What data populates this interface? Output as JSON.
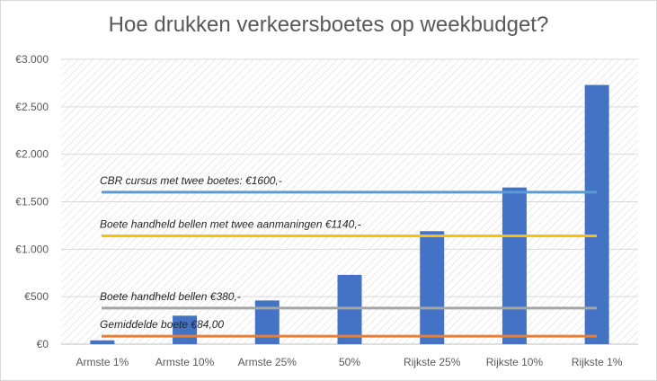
{
  "chart_data": {
    "type": "bar",
    "title": "Hoe drukken verkeersboetes op weekbudget?",
    "categories": [
      "Armste 1%",
      "Armste 10%",
      "Armste 25%",
      "50%",
      "Rijkste 25%",
      "Rijkste 10%",
      "Rijkste 1%"
    ],
    "values": [
      40,
      300,
      460,
      730,
      1190,
      1650,
      2730
    ],
    "ylim": [
      0,
      3000
    ],
    "yticks": [
      0,
      500,
      1000,
      1500,
      2000,
      2500,
      3000
    ],
    "ytick_labels": [
      "€0",
      "€500",
      "€1.000",
      "€1.500",
      "€2.000",
      "€2.500",
      "€3.000"
    ],
    "bar_color": "#4472c4",
    "background_pattern": "diagonal-hatch",
    "reference_lines": [
      {
        "label": "CBR cursus met twee boetes: €1600,-",
        "value": 1600,
        "color": "#5b9bd5"
      },
      {
        "label": "Boete handheld bellen met twee aanmaningen €1140,-",
        "value": 1140,
        "color": "#ffc000"
      },
      {
        "label": "Boete handheld bellen €380,-",
        "value": 380,
        "color": "#a5a5a5"
      },
      {
        "label": "Gemiddelde boete €84,00",
        "value": 84,
        "color": "#ed7d31"
      }
    ]
  }
}
